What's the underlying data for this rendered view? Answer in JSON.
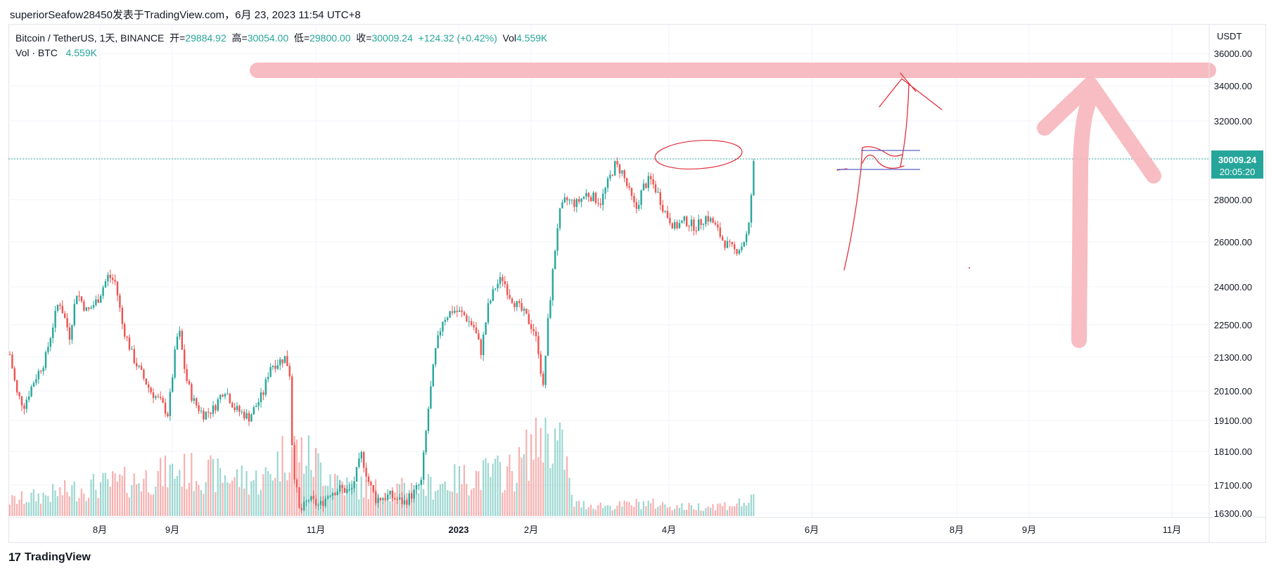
{
  "caption": "superiorSeafow28450发表于TradingView.com，6月 23, 2023 11:54 UTC+8",
  "legend": {
    "symbol": "Bitcoin / TetherUS, 1天, BINANCE",
    "open_label": "开=",
    "open": "29884.92",
    "high_label": "高=",
    "high": "30054.00",
    "low_label": "低=",
    "low": "29800.00",
    "close_label": "收=",
    "close": "30009.24",
    "change": "+124.32 (+0.42%)",
    "vol_label": "Vol",
    "vol": "4.559K",
    "vol_row_label": "Vol · BTC",
    "vol_row_value": "4.559K"
  },
  "brand": {
    "name": "TradingView"
  },
  "colors": {
    "up": "#26a69a",
    "down": "#ef5350",
    "drawing": "#f7b5bc",
    "pen": "#e0303c",
    "box": "#5b5fc7"
  },
  "chart_data": {
    "type": "candlestick",
    "symbol": "BTCUSDT",
    "interval": "1D",
    "y_axis_unit": "USDT",
    "y_ticks": [
      "36000.00",
      "34000.00",
      "32000.00",
      "28000.00",
      "26000.00",
      "24000.00",
      "22500.00",
      "21300.00",
      "20100.00",
      "19100.00",
      "18100.00",
      "17100.00",
      "16300.00"
    ],
    "x_ticks": [
      {
        "label": "8月",
        "bold": false
      },
      {
        "label": "9月",
        "bold": false
      },
      {
        "label": "11月",
        "bold": false
      },
      {
        "label": "2023",
        "bold": true
      },
      {
        "label": "2月",
        "bold": false
      },
      {
        "label": "4月",
        "bold": false
      },
      {
        "label": "6月",
        "bold": false
      },
      {
        "label": "8月",
        "bold": false
      },
      {
        "label": "9月",
        "bold": false
      },
      {
        "label": "11月",
        "bold": false
      }
    ],
    "last_price": "30009.24",
    "countdown": "20:05:20",
    "price_path": [
      [
        0,
        21400
      ],
      [
        10,
        20000
      ],
      [
        20,
        19600
      ],
      [
        35,
        20500
      ],
      [
        50,
        21200
      ],
      [
        70,
        23500
      ],
      [
        85,
        22100
      ],
      [
        95,
        23800
      ],
      [
        110,
        23000
      ],
      [
        125,
        23500
      ],
      [
        140,
        24500
      ],
      [
        150,
        24200
      ],
      [
        160,
        22500
      ],
      [
        175,
        21300
      ],
      [
        185,
        20800
      ],
      [
        200,
        20100
      ],
      [
        215,
        19700
      ],
      [
        225,
        19300
      ],
      [
        235,
        21500
      ],
      [
        240,
        22400
      ],
      [
        250,
        20600
      ],
      [
        260,
        19800
      ],
      [
        275,
        19300
      ],
      [
        290,
        19500
      ],
      [
        305,
        20200
      ],
      [
        320,
        19500
      ],
      [
        340,
        19200
      ],
      [
        360,
        20000
      ],
      [
        370,
        21000
      ],
      [
        380,
        21100
      ],
      [
        392,
        21300
      ],
      [
        398,
        20700
      ],
      [
        402,
        17800
      ],
      [
        412,
        16300
      ],
      [
        425,
        16700
      ],
      [
        440,
        16500
      ],
      [
        455,
        16900
      ],
      [
        470,
        17000
      ],
      [
        485,
        16900
      ],
      [
        500,
        18000
      ],
      [
        510,
        17200
      ],
      [
        520,
        16700
      ],
      [
        540,
        16800
      ],
      [
        560,
        16600
      ],
      [
        575,
        16900
      ],
      [
        585,
        17200
      ],
      [
        595,
        19500
      ],
      [
        605,
        21500
      ],
      [
        615,
        22700
      ],
      [
        630,
        23100
      ],
      [
        645,
        22900
      ],
      [
        660,
        22400
      ],
      [
        670,
        21500
      ],
      [
        680,
        23200
      ],
      [
        690,
        24000
      ],
      [
        700,
        24400
      ],
      [
        710,
        23700
      ],
      [
        720,
        23300
      ],
      [
        732,
        22900
      ],
      [
        745,
        22300
      ],
      [
        752,
        21500
      ],
      [
        758,
        20100
      ],
      [
        765,
        22600
      ],
      [
        772,
        24700
      ],
      [
        780,
        27200
      ],
      [
        790,
        28000
      ],
      [
        805,
        27800
      ],
      [
        820,
        28300
      ],
      [
        840,
        27900
      ],
      [
        852,
        29000
      ],
      [
        860,
        29700
      ],
      [
        870,
        29400
      ],
      [
        880,
        28400
      ],
      [
        890,
        27500
      ],
      [
        900,
        28600
      ],
      [
        910,
        29000
      ],
      [
        920,
        28400
      ],
      [
        930,
        27500
      ],
      [
        945,
        26700
      ],
      [
        960,
        27000
      ],
      [
        975,
        26700
      ],
      [
        990,
        27200
      ],
      [
        1000,
        26900
      ],
      [
        1015,
        26000
      ],
      [
        1030,
        25600
      ],
      [
        1040,
        25800
      ],
      [
        1050,
        26500
      ],
      [
        1058,
        30000
      ]
    ],
    "volume_path": [
      [
        0,
        0.15
      ],
      [
        60,
        0.22
      ],
      [
        120,
        0.3
      ],
      [
        180,
        0.35
      ],
      [
        240,
        0.45
      ],
      [
        300,
        0.4
      ],
      [
        360,
        0.35
      ],
      [
        400,
        0.7
      ],
      [
        420,
        0.6
      ],
      [
        480,
        0.3
      ],
      [
        540,
        0.25
      ],
      [
        600,
        0.3
      ],
      [
        660,
        0.4
      ],
      [
        720,
        0.45
      ],
      [
        760,
        0.9
      ],
      [
        790,
        0.6
      ],
      [
        800,
        0.12
      ],
      [
        860,
        0.1
      ],
      [
        900,
        0.13
      ],
      [
        960,
        0.09
      ],
      [
        1020,
        0.11
      ],
      [
        1058,
        0.15
      ]
    ]
  }
}
